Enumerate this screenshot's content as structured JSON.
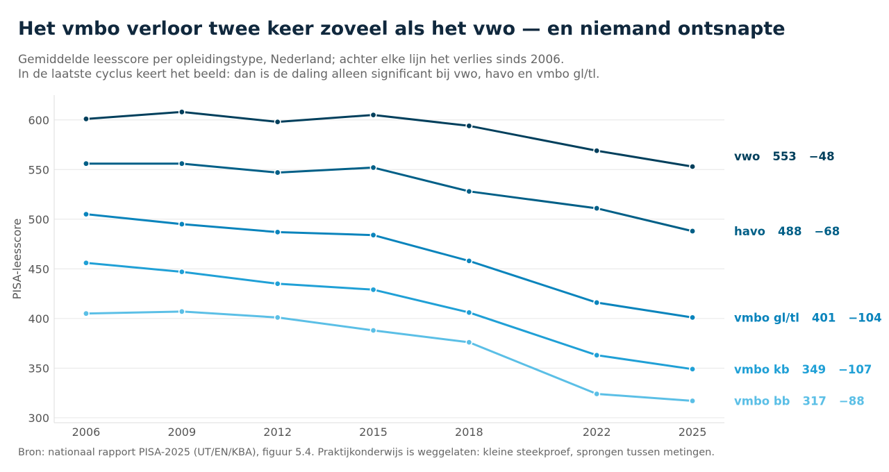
{
  "header": {
    "title": "Het vmbo verloor twee keer zoveel als het vwo — en niemand ontsnapte",
    "subtitle_line1": "Gemiddelde leesscore per opleidingstype, Nederland; achter elke lijn het verlies sinds 2006.",
    "subtitle_line2": "In de laatste cyclus keert het beeld: dan is de daling alleen significant bij vwo, havo en vmbo gl/tl."
  },
  "footer": {
    "source": "Bron: nationaal rapport PISA-2025 (UT/EN/KBA), figuur 5.4. Praktijkonderwijs is weggelaten: kleine steekproef, sprongen tussen metingen."
  },
  "chart_data": {
    "type": "line",
    "title": "Het vmbo verloor twee keer zoveel als het vwo — en niemand ontsnapte",
    "xlabel": "",
    "ylabel": "PISA-leesscore",
    "x": [
      2006,
      2009,
      2012,
      2015,
      2018,
      2022,
      2025
    ],
    "xticks": [
      "2006",
      "2009",
      "2012",
      "2015",
      "2018",
      "2022",
      "2025"
    ],
    "yticks": [
      300,
      350,
      400,
      450,
      500,
      550,
      600
    ],
    "xlim": [
      2005,
      2026
    ],
    "ylim": [
      295,
      625
    ],
    "grid": true,
    "legend": "direct-labels-right",
    "series": [
      {
        "name": "vwo",
        "values": [
          601,
          608,
          598,
          605,
          594,
          569,
          553
        ],
        "end_value": "553",
        "change": "−48",
        "color": "#003f5c"
      },
      {
        "name": "havo",
        "values": [
          556,
          556,
          547,
          552,
          528,
          511,
          488
        ],
        "end_value": "488",
        "change": "−68",
        "color": "#005f87"
      },
      {
        "name": "vmbo gl/tl",
        "values": [
          505,
          495,
          487,
          484,
          458,
          416,
          401
        ],
        "end_value": "401",
        "change": "−104",
        "color": "#0a84bc"
      },
      {
        "name": "vmbo kb",
        "values": [
          456,
          447,
          435,
          429,
          406,
          363,
          349
        ],
        "end_value": "349",
        "change": "−107",
        "color": "#20a0d6"
      },
      {
        "name": "vmbo bb",
        "values": [
          405,
          407,
          401,
          388,
          376,
          324,
          317
        ],
        "end_value": "317",
        "change": "−88",
        "color": "#5bbfe6"
      }
    ]
  }
}
